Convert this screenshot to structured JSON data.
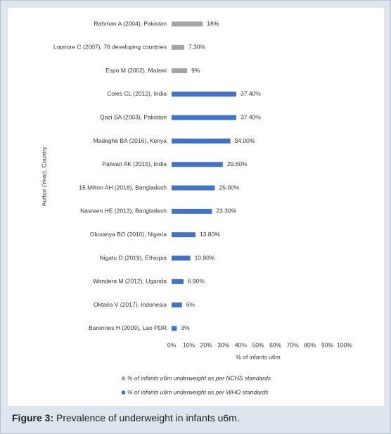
{
  "chart_data": {
    "type": "hbar",
    "y_label": "Author (Year), Country",
    "x_label": "% of infants u6m",
    "categories": [
      "Rahman A (2004), Pakistan",
      "Lopriore C (2007), 76 developing countries",
      "Espo M (2002), Malawi",
      "Coles CL (2012), India",
      "Qazi SA (2003), Pakistan",
      "Madeghe BA (2016), Kenya",
      "Patwari AK (2015), India",
      "15.Milton AH (2018), Bangladesh",
      "Nasreen HE (2013), Bangladesh",
      "Olusanya BO (2010), Nigeria",
      "Nigatu D (2019), Ethiopia",
      "Wandera M (2012), Uganda",
      "Oktaria V (2017), Indonesia",
      "Barennes H (2009), Lao PDR"
    ],
    "series": [
      {
        "name": "% of infants u6m underweight as per NCHS standards",
        "color": "#a5a5a5",
        "values": [
          18,
          7.3,
          9,
          null,
          null,
          null,
          null,
          null,
          null,
          null,
          null,
          null,
          null,
          null
        ],
        "value_labels": [
          "18%",
          "7.30%",
          "9%",
          null,
          null,
          null,
          null,
          null,
          null,
          null,
          null,
          null,
          null,
          null
        ]
      },
      {
        "name": "% of infants u6m underweight as per WHO standards",
        "color": "#4472c4",
        "values": [
          null,
          null,
          null,
          37.4,
          37.4,
          34,
          29.6,
          25,
          23.3,
          13.8,
          10.8,
          6.9,
          6,
          3
        ],
        "value_labels": [
          null,
          null,
          null,
          "37.40%",
          "37.40%",
          "34.00%",
          "29.60%",
          "25.00%",
          "23.30%",
          "13.80%",
          "10.80%",
          "6.90%",
          "6%",
          "3%"
        ]
      }
    ],
    "xlim": [
      0,
      100
    ],
    "xticks": [
      {
        "value": 0,
        "label": "0%"
      },
      {
        "value": 10,
        "label": "10%"
      },
      {
        "value": 20,
        "label": "20%"
      },
      {
        "value": 30,
        "label": "30%"
      },
      {
        "value": 40,
        "label": "40%"
      },
      {
        "value": 50,
        "label": "50%"
      },
      {
        "value": 60,
        "label": "60%"
      },
      {
        "value": 70,
        "label": "70%"
      },
      {
        "value": 80,
        "label": "80%"
      },
      {
        "value": 90,
        "label": "90%"
      },
      {
        "value": 100,
        "label": "100%"
      }
    ],
    "grid": false,
    "legend": "bottom"
  },
  "caption": {
    "label": "Figure 3:",
    "text": "Prevalence of underweight in infants u6m."
  }
}
